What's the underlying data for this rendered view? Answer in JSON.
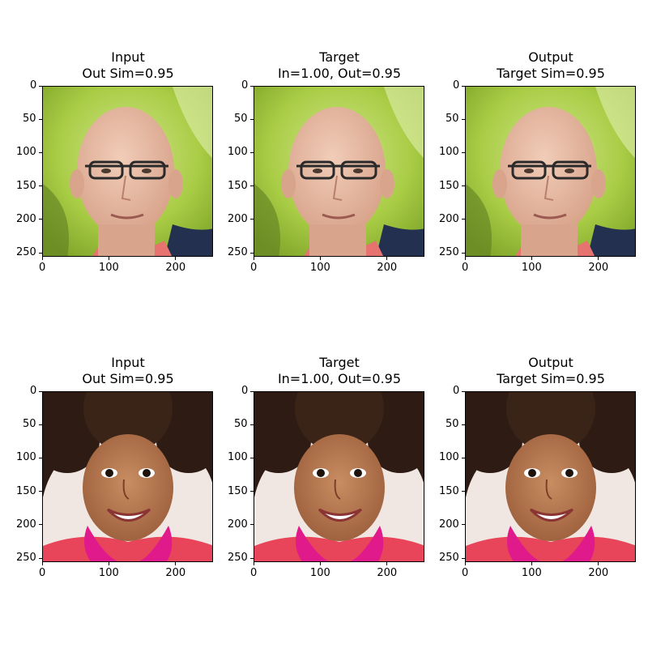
{
  "figure": {
    "panels": [
      {
        "id": "r1c1",
        "title_line1": "Input",
        "title_line2": "Out Sim=0.95",
        "image": "elderly-bald-man-with-glasses-green-foliage-background"
      },
      {
        "id": "r1c2",
        "title_line1": "Target",
        "title_line2": "In=1.00, Out=0.95",
        "image": "elderly-bald-man-with-glasses-green-foliage-background"
      },
      {
        "id": "r1c3",
        "title_line1": "Output",
        "title_line2": "Target Sim=0.95",
        "image": "elderly-bald-man-with-glasses-green-foliage-background"
      },
      {
        "id": "r2c1",
        "title_line1": "Input",
        "title_line2": "Out Sim=0.95",
        "image": "smiling-girl-curly-hair-pink-scarf"
      },
      {
        "id": "r2c2",
        "title_line1": "Target",
        "title_line2": "In=1.00, Out=0.95",
        "image": "smiling-girl-curly-hair-pink-scarf"
      },
      {
        "id": "r2c3",
        "title_line1": "Output",
        "title_line2": "Target Sim=0.95",
        "image": "smiling-girl-curly-hair-pink-scarf"
      }
    ]
  },
  "chart_data": [
    {
      "type": "image",
      "title": "Input\nOut Sim=0.95",
      "xlim": [
        0,
        256
      ],
      "ylim": [
        256,
        0
      ],
      "xticks": [
        "0",
        "100",
        "200"
      ],
      "yticks": [
        "0",
        "50",
        "100",
        "150",
        "200",
        "250"
      ]
    },
    {
      "type": "image",
      "title": "Target\nIn=1.00, Out=0.95",
      "xlim": [
        0,
        256
      ],
      "ylim": [
        256,
        0
      ],
      "xticks": [
        "0",
        "100",
        "200"
      ],
      "yticks": [
        "0",
        "50",
        "100",
        "150",
        "200",
        "250"
      ]
    },
    {
      "type": "image",
      "title": "Output\nTarget Sim=0.95",
      "xlim": [
        0,
        256
      ],
      "ylim": [
        256,
        0
      ],
      "xticks": [
        "0",
        "100",
        "200"
      ],
      "yticks": [
        "0",
        "50",
        "100",
        "150",
        "200",
        "250"
      ]
    },
    {
      "type": "image",
      "title": "Input\nOut Sim=0.95",
      "xlim": [
        0,
        256
      ],
      "ylim": [
        256,
        0
      ],
      "xticks": [
        "0",
        "100",
        "200"
      ],
      "yticks": [
        "0",
        "50",
        "100",
        "150",
        "200",
        "250"
      ]
    },
    {
      "type": "image",
      "title": "Target\nIn=1.00, Out=0.95",
      "xlim": [
        0,
        256
      ],
      "ylim": [
        256,
        0
      ],
      "xticks": [
        "0",
        "100",
        "200"
      ],
      "yticks": [
        "0",
        "50",
        "100",
        "150",
        "200",
        "250"
      ]
    },
    {
      "type": "image",
      "title": "Output\nTarget Sim=0.95",
      "xlim": [
        0,
        256
      ],
      "ylim": [
        256,
        0
      ],
      "xticks": [
        "0",
        "100",
        "200"
      ],
      "yticks": [
        "0",
        "50",
        "100",
        "150",
        "200",
        "250"
      ]
    }
  ]
}
